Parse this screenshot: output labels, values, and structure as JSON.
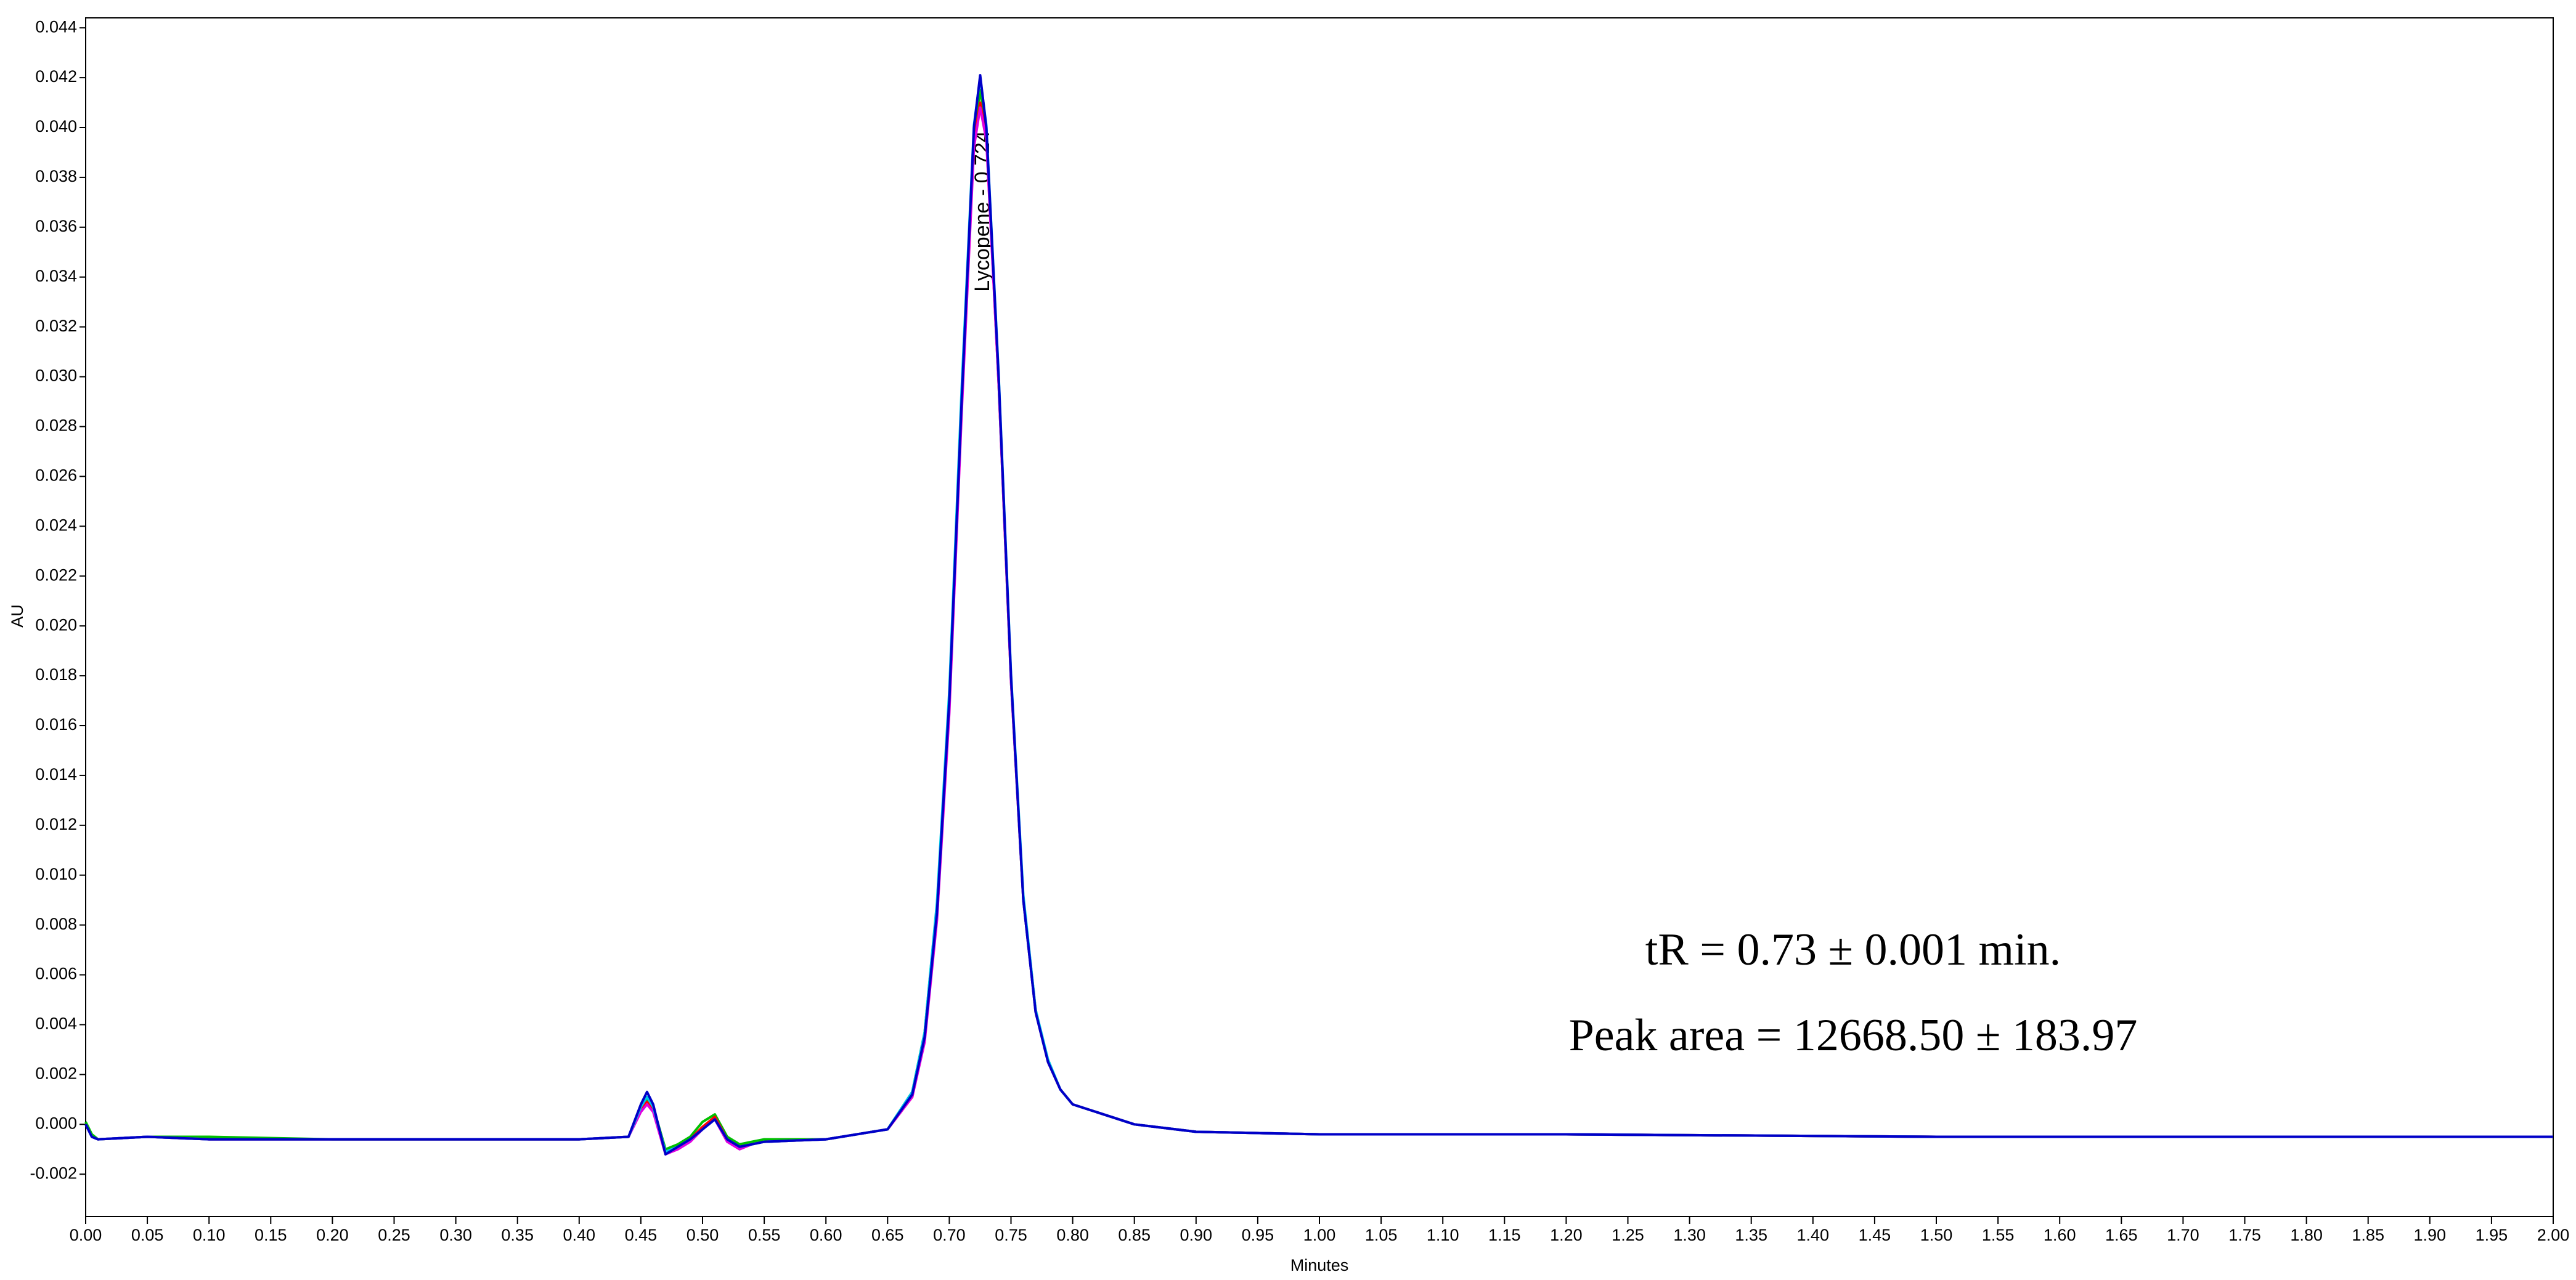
{
  "chart_data": {
    "type": "line",
    "xlabel": "Minutes",
    "ylabel": "AU",
    "annotations": [
      "Lycopene - 0.724",
      "tR = 0.73 ± 0.001 min.",
      "Peak area = 12668.50 ± 183.97"
    ],
    "xlim": [
      0,
      2.0
    ],
    "ylim": [
      -0.0037,
      0.0444
    ],
    "xticks": [
      {
        "value": 0,
        "label": "0.00"
      },
      0.05,
      {
        "value": 0.1,
        "label": "0.10"
      },
      0.15,
      {
        "value": 0.2,
        "label": "0.20"
      },
      0.25,
      {
        "value": 0.3,
        "label": "0.30"
      },
      0.35,
      {
        "value": 0.4,
        "label": "0.40"
      },
      0.45,
      {
        "value": 0.5,
        "label": "0.50"
      },
      0.55,
      {
        "value": 0.6,
        "label": "0.60"
      },
      0.65,
      {
        "value": 0.7,
        "label": "0.70"
      },
      0.75,
      {
        "value": 0.8,
        "label": "0.80"
      },
      0.85,
      {
        "value": 0.9,
        "label": "0.90"
      },
      0.95,
      {
        "value": 1,
        "label": "1.00"
      },
      1.05,
      {
        "value": 1.1,
        "label": "1.10"
      },
      1.15,
      {
        "value": 1.2,
        "label": "1.20"
      },
      1.25,
      {
        "value": 1.3,
        "label": "1.30"
      },
      1.35,
      {
        "value": 1.4,
        "label": "1.40"
      },
      1.45,
      {
        "value": 1.5,
        "label": "1.50"
      },
      1.55,
      {
        "value": 1.6,
        "label": "1.60"
      },
      1.65,
      {
        "value": 1.7,
        "label": "1.70"
      },
      1.75,
      {
        "value": 1.8,
        "label": "1.80"
      },
      1.85,
      {
        "value": 1.9,
        "label": "1.90"
      },
      1.95,
      {
        "value": 2,
        "label": "2.00"
      }
    ],
    "yticks": [
      -0.002,
      {
        "value": 0,
        "label": "0.000"
      },
      0.002,
      0.004,
      0.006,
      0.008,
      {
        "value": 0.01,
        "label": "0.010"
      },
      0.012,
      0.014,
      0.016,
      0.018,
      {
        "value": 0.02,
        "label": "0.020"
      },
      0.022,
      0.024,
      0.026,
      0.028,
      {
        "value": 0.03,
        "label": "0.030"
      },
      0.032,
      0.034,
      0.036,
      0.038,
      {
        "value": 0.04,
        "label": "0.040"
      },
      0.042,
      0.044
    ],
    "grid": false,
    "x": [
      0,
      0.005,
      0.01,
      0.05,
      0.1,
      0.2,
      0.3,
      0.4,
      0.44,
      0.45,
      0.455,
      0.46,
      0.47,
      0.48,
      0.49,
      0.5,
      0.51,
      0.52,
      0.53,
      0.54,
      0.55,
      0.6,
      0.65,
      0.67,
      0.68,
      0.69,
      0.7,
      0.71,
      0.72,
      0.725,
      0.73,
      0.74,
      0.75,
      0.76,
      0.77,
      0.78,
      0.79,
      0.8,
      0.85,
      0.9,
      1.0,
      1.2,
      1.5,
      1.8,
      2.0
    ],
    "series": [
      {
        "color": "#00c000",
        "values": [
          0.0001,
          -0.0004,
          -0.0006,
          -0.0005,
          -0.0005,
          -0.0006,
          -0.0006,
          -0.0006,
          -0.0005,
          0.0007,
          0.001,
          0.0007,
          -0.001,
          -0.0008,
          -0.0005,
          0.0001,
          0.0004,
          -0.0005,
          -0.0008,
          -0.0007,
          -0.0006,
          -0.0006,
          -0.0002,
          0.0013,
          0.0037,
          0.0088,
          0.0172,
          0.0292,
          0.0398,
          0.0415,
          0.0398,
          0.0297,
          0.0178,
          0.009,
          0.0045,
          0.0025,
          0.0014,
          0.0008,
          0.0,
          -0.0003,
          -0.0004,
          -0.0004,
          -0.0005,
          -0.0005,
          -0.0005
        ]
      },
      {
        "color": "#ff0000",
        "values": [
          0.0,
          -0.0005,
          -0.0006,
          -0.0005,
          -0.0006,
          -0.0006,
          -0.0006,
          -0.0006,
          -0.0005,
          0.0006,
          0.0009,
          0.0006,
          -0.0011,
          -0.0009,
          -0.0006,
          -0.0001,
          0.0003,
          -0.0006,
          -0.0009,
          -0.0008,
          -0.0007,
          -0.0006,
          -0.0002,
          0.0011,
          0.0034,
          0.0083,
          0.0167,
          0.0287,
          0.0394,
          0.041,
          0.0396,
          0.0298,
          0.0179,
          0.0091,
          0.0046,
          0.0025,
          0.0014,
          0.0008,
          0.0,
          -0.0003,
          -0.0004,
          -0.0004,
          -0.0005,
          -0.0005,
          -0.0005
        ]
      },
      {
        "color": "#e000e0",
        "values": [
          0.0,
          -0.0005,
          -0.0006,
          -0.0005,
          -0.0006,
          -0.0006,
          -0.0006,
          -0.0006,
          -0.0005,
          0.0005,
          0.0008,
          0.0005,
          -0.0012,
          -0.001,
          -0.0007,
          -0.0002,
          0.0002,
          -0.0007,
          -0.001,
          -0.0008,
          -0.0007,
          -0.0006,
          -0.0002,
          0.0011,
          0.0033,
          0.0082,
          0.0165,
          0.0285,
          0.0392,
          0.0408,
          0.0395,
          0.0297,
          0.0178,
          0.009,
          0.0045,
          0.0025,
          0.0014,
          0.0008,
          0.0,
          -0.0003,
          -0.0004,
          -0.0004,
          -0.0005,
          -0.0005,
          -0.0005
        ]
      },
      {
        "color": "#00c8e8",
        "values": [
          0.0,
          -0.0005,
          -0.0006,
          -0.0005,
          -0.0006,
          -0.0006,
          -0.0006,
          -0.0006,
          -0.0005,
          0.0007,
          0.0011,
          0.0007,
          -0.0011,
          -0.0009,
          -0.0006,
          -0.0002,
          0.0002,
          -0.0006,
          -0.0009,
          -0.0008,
          -0.0007,
          -0.0006,
          -0.0002,
          0.0013,
          0.0037,
          0.0089,
          0.0174,
          0.0295,
          0.0401,
          0.042,
          0.0401,
          0.0301,
          0.0181,
          0.0092,
          0.0046,
          0.0026,
          0.0014,
          0.0008,
          0.0,
          -0.0003,
          -0.0004,
          -0.0004,
          -0.0005,
          -0.0005,
          -0.0005
        ]
      },
      {
        "color": "#0000c8",
        "values": [
          0.0,
          -0.0005,
          -0.0006,
          -0.0005,
          -0.0006,
          -0.0006,
          -0.0006,
          -0.0006,
          -0.0005,
          0.0008,
          0.0013,
          0.0008,
          -0.0012,
          -0.0009,
          -0.0006,
          -0.0002,
          0.0002,
          -0.0006,
          -0.0009,
          -0.0008,
          -0.0007,
          -0.0006,
          -0.0002,
          0.0012,
          0.0035,
          0.0085,
          0.017,
          0.029,
          0.04,
          0.0421,
          0.04,
          0.03,
          0.018,
          0.009,
          0.0045,
          0.0025,
          0.0014,
          0.0008,
          0.0,
          -0.0003,
          -0.0004,
          -0.0004,
          -0.0005,
          -0.0005,
          -0.0005
        ]
      }
    ]
  }
}
